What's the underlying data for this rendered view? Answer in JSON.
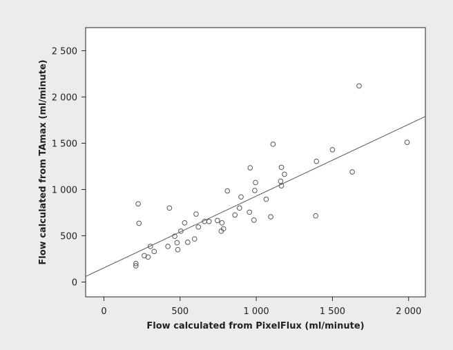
{
  "chart_data": {
    "type": "scatter",
    "title": "",
    "xlabel": "Flow calculated from PixelFlux (ml/minute)",
    "ylabel": "Flow calculated from TAmax (ml/minute)",
    "xlim": [
      -120,
      2110
    ],
    "ylim": [
      -160,
      2750
    ],
    "x_ticks": [
      0,
      500,
      1000,
      1500,
      2000
    ],
    "x_tick_labels": [
      "0",
      "500",
      "1 000",
      "1 500",
      "2 000"
    ],
    "y_ticks": [
      0,
      500,
      1000,
      1500,
      2000,
      2500
    ],
    "y_tick_labels": [
      "0",
      "500",
      "1 000",
      "1 500",
      "2 000",
      "2 500"
    ],
    "grid": false,
    "legend": "none",
    "marker": "open-circle",
    "marker_color": "#555555",
    "line_color": "#555555",
    "fit_line": {
      "x": [
        -120,
        2110
      ],
      "y": [
        60,
        1790
      ]
    },
    "points": [
      {
        "x": 210,
        "y": 175
      },
      {
        "x": 210,
        "y": 200
      },
      {
        "x": 225,
        "y": 845
      },
      {
        "x": 230,
        "y": 635
      },
      {
        "x": 265,
        "y": 285
      },
      {
        "x": 290,
        "y": 270
      },
      {
        "x": 305,
        "y": 385
      },
      {
        "x": 330,
        "y": 330
      },
      {
        "x": 420,
        "y": 385
      },
      {
        "x": 430,
        "y": 800
      },
      {
        "x": 465,
        "y": 495
      },
      {
        "x": 480,
        "y": 425
      },
      {
        "x": 485,
        "y": 350
      },
      {
        "x": 505,
        "y": 550
      },
      {
        "x": 530,
        "y": 640
      },
      {
        "x": 550,
        "y": 430
      },
      {
        "x": 595,
        "y": 465
      },
      {
        "x": 605,
        "y": 735
      },
      {
        "x": 620,
        "y": 595
      },
      {
        "x": 660,
        "y": 655
      },
      {
        "x": 690,
        "y": 655
      },
      {
        "x": 745,
        "y": 665
      },
      {
        "x": 770,
        "y": 550
      },
      {
        "x": 775,
        "y": 640
      },
      {
        "x": 785,
        "y": 575
      },
      {
        "x": 810,
        "y": 985
      },
      {
        "x": 860,
        "y": 725
      },
      {
        "x": 890,
        "y": 800
      },
      {
        "x": 900,
        "y": 920
      },
      {
        "x": 955,
        "y": 755
      },
      {
        "x": 960,
        "y": 1235
      },
      {
        "x": 985,
        "y": 670
      },
      {
        "x": 990,
        "y": 990
      },
      {
        "x": 995,
        "y": 1075
      },
      {
        "x": 1065,
        "y": 895
      },
      {
        "x": 1095,
        "y": 705
      },
      {
        "x": 1110,
        "y": 1490
      },
      {
        "x": 1160,
        "y": 1090
      },
      {
        "x": 1165,
        "y": 1040
      },
      {
        "x": 1165,
        "y": 1240
      },
      {
        "x": 1185,
        "y": 1165
      },
      {
        "x": 1390,
        "y": 715
      },
      {
        "x": 1395,
        "y": 1305
      },
      {
        "x": 1500,
        "y": 1430
      },
      {
        "x": 1630,
        "y": 1190
      },
      {
        "x": 1675,
        "y": 2120
      },
      {
        "x": 1990,
        "y": 1510
      }
    ]
  }
}
